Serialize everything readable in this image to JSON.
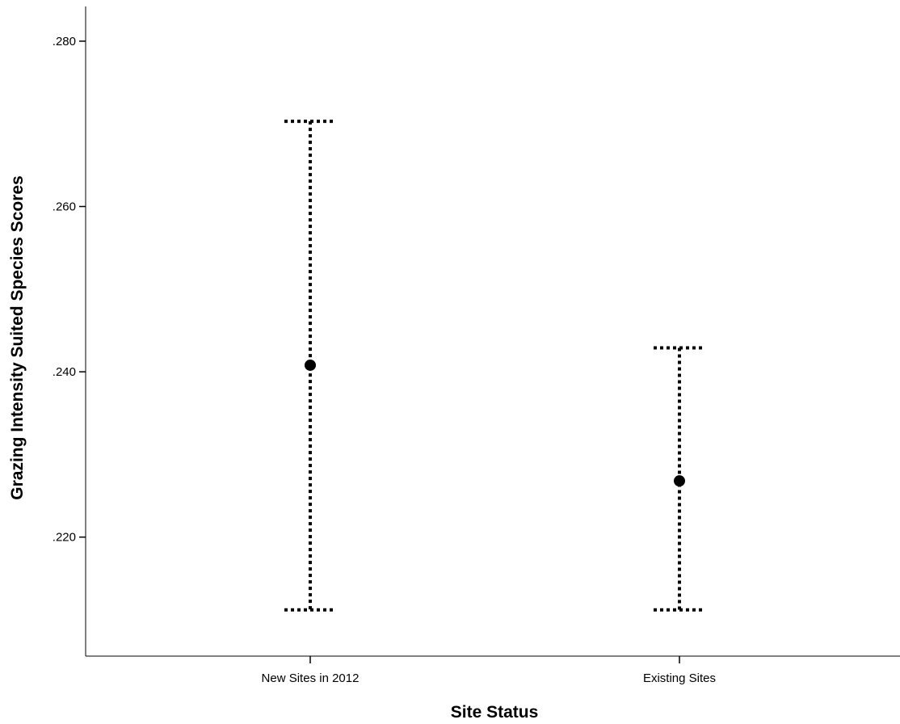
{
  "chart_data": {
    "type": "errorbar",
    "title": "",
    "xlabel": "Site Status",
    "ylabel": "Grazing Intensity Suited Species Scores",
    "categories": [
      "New Sites in 2012",
      "Existing Sites"
    ],
    "means": [
      0.2408,
      0.2268
    ],
    "lower": [
      0.2112,
      0.2112
    ],
    "upper": [
      0.2703,
      0.2429
    ],
    "yticks": [
      ".220",
      ".240",
      ".260",
      ".280"
    ],
    "ytick_values": [
      0.22,
      0.24,
      0.26,
      0.28
    ],
    "ylim": [
      0.2056,
      0.2842
    ],
    "grid": false,
    "legend": "none",
    "colors": {
      "axis": "#000000",
      "marker": "#000000",
      "errorbar": "#000000",
      "background": "#ffffff"
    }
  }
}
